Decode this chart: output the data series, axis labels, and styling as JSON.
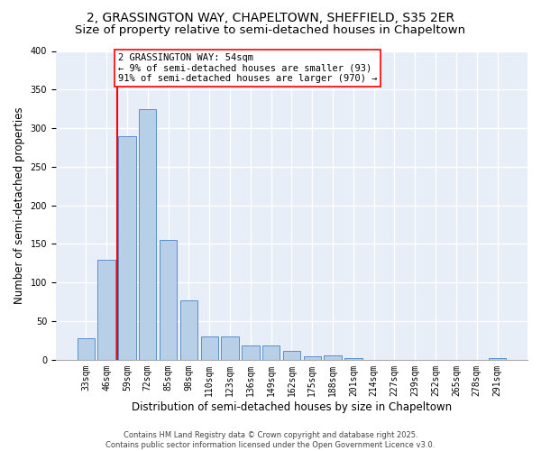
{
  "title": "2, GRASSINGTON WAY, CHAPELTOWN, SHEFFIELD, S35 2ER",
  "subtitle": "Size of property relative to semi-detached houses in Chapeltown",
  "xlabel": "Distribution of semi-detached houses by size in Chapeltown",
  "ylabel": "Number of semi-detached properties",
  "bar_color": "#b8cfe8",
  "bar_edge_color": "#5b8fc9",
  "background_color": "#e8eef8",
  "grid_color": "#ffffff",
  "categories": [
    "33sqm",
    "46sqm",
    "59sqm",
    "72sqm",
    "85sqm",
    "98sqm",
    "110sqm",
    "123sqm",
    "136sqm",
    "149sqm",
    "162sqm",
    "175sqm",
    "188sqm",
    "201sqm",
    "214sqm",
    "227sqm",
    "239sqm",
    "252sqm",
    "265sqm",
    "278sqm",
    "291sqm"
  ],
  "values": [
    28,
    130,
    290,
    325,
    155,
    77,
    30,
    30,
    18,
    18,
    12,
    5,
    6,
    2,
    0,
    0,
    0,
    0,
    0,
    0,
    2
  ],
  "ylim": [
    0,
    400
  ],
  "red_line_x": 1.5,
  "annotation_text": "2 GRASSINGTON WAY: 54sqm\n← 9% of semi-detached houses are smaller (93)\n91% of semi-detached houses are larger (970) →",
  "footer": "Contains HM Land Registry data © Crown copyright and database right 2025.\nContains public sector information licensed under the Open Government Licence v3.0.",
  "title_fontsize": 10,
  "subtitle_fontsize": 9.5,
  "tick_fontsize": 7,
  "ylabel_fontsize": 8.5,
  "xlabel_fontsize": 8.5,
  "annotation_fontsize": 7.5,
  "footer_fontsize": 6
}
